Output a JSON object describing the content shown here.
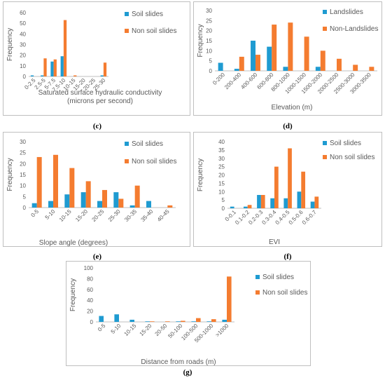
{
  "colors": {
    "series1": "#1f9bd1",
    "series2": "#f47c30",
    "axis": "#bfbfbf",
    "text": "#595959"
  },
  "panels": [
    {
      "caption": "(c)"
    },
    {
      "caption": "(d)"
    },
    {
      "caption": "(e)"
    },
    {
      "caption": "(f)"
    },
    {
      "caption": "(g)"
    }
  ],
  "chart_data": [
    {
      "type": "bar",
      "title": "",
      "xlabel": "Saturated surface hydraulic conductivity (microns per second)",
      "xlabel_lines": [
        "Saturated surface hydraulic conductivity",
        "(microns per second)"
      ],
      "ylabel": "Frequency",
      "ylim": [
        0,
        60
      ],
      "yticks": [
        0,
        10,
        20,
        30,
        40,
        50,
        60
      ],
      "grid": false,
      "legend": "top-right",
      "categories": [
        "0-2.5",
        "2.5-5",
        "5-7.5",
        "7.5-10",
        "10-15",
        "15-20",
        "20-25",
        "25-30"
      ],
      "series": [
        {
          "name": "Soil slides",
          "values": [
            1,
            1,
            14,
            19,
            0,
            0,
            0,
            1
          ]
        },
        {
          "name": "Non soil slides",
          "values": [
            0,
            17,
            16,
            53,
            1,
            0,
            0,
            13
          ]
        }
      ]
    },
    {
      "type": "bar",
      "title": "",
      "xlabel": "Elevation (m)",
      "ylabel": "Frequency",
      "ylim": [
        0,
        30
      ],
      "yticks": [
        0,
        5,
        10,
        15,
        20,
        25,
        30
      ],
      "grid": false,
      "legend": "top-right",
      "categories": [
        "0-200",
        "200-400",
        "400-600",
        "600-800",
        "800-1000",
        "1000-1500",
        "1500-2000",
        "2000-2500",
        "2500-3000",
        "3000-3500"
      ],
      "series": [
        {
          "name": "Landslides",
          "values": [
            4,
            1,
            15,
            12,
            2,
            0,
            2,
            0,
            0,
            0
          ]
        },
        {
          "name": "Non-Landslides",
          "values": [
            0,
            7,
            8,
            23,
            24,
            17,
            10,
            6,
            3,
            2
          ]
        }
      ]
    },
    {
      "type": "bar",
      "title": "",
      "xlabel": "Slope angle (degrees)",
      "ylabel": "Frequency",
      "ylim": [
        0,
        30
      ],
      "yticks": [
        0,
        5,
        10,
        15,
        20,
        25,
        30
      ],
      "grid": false,
      "legend": "top-right",
      "categories": [
        "0-5",
        "5-10",
        "10-15",
        "15-20",
        "20-25",
        "25-30",
        "30-35",
        "35-40",
        "40-45"
      ],
      "series": [
        {
          "name": "Soil slides",
          "values": [
            2,
            3,
            6,
            7,
            3,
            7,
            1,
            3,
            0
          ]
        },
        {
          "name": "Non soil slides",
          "values": [
            23,
            24,
            18,
            12,
            8,
            4,
            10,
            0,
            1
          ]
        }
      ]
    },
    {
      "type": "bar",
      "title": "",
      "xlabel": "EVI",
      "ylabel": "Frequency",
      "ylim": [
        0,
        40
      ],
      "yticks": [
        0,
        5,
        10,
        15,
        20,
        25,
        30,
        35,
        40
      ],
      "grid": false,
      "legend": "top-right",
      "categories": [
        "0-0.1",
        "0.1-0.2",
        "0.2-0.3",
        "0.3-0.4",
        "0.4-0.5",
        "0.5-0.6",
        "0.6-0.7"
      ],
      "series": [
        {
          "name": "Soil slides",
          "values": [
            1,
            1,
            8,
            6,
            6,
            10,
            4
          ]
        },
        {
          "name": "Non soil slides",
          "values": [
            0,
            2,
            8,
            25,
            36,
            22,
            7
          ]
        }
      ]
    },
    {
      "type": "bar",
      "title": "",
      "xlabel": "Distance from roads (m)",
      "ylabel": "Frequency",
      "ylim": [
        0,
        100
      ],
      "yticks": [
        0,
        20,
        40,
        60,
        80,
        100
      ],
      "grid": false,
      "legend": "top-right",
      "categories": [
        "0-5",
        "5-10",
        "10-15",
        "15-20",
        "20-50",
        "50-100",
        "100-500",
        "500-1000",
        ">1000"
      ],
      "series": [
        {
          "name": "Soil slides",
          "values": [
            11,
            14,
            4,
            1,
            0,
            1,
            1,
            1,
            4
          ]
        },
        {
          "name": "Non soil slides",
          "values": [
            0,
            0,
            0,
            1,
            1,
            2,
            7,
            5,
            84
          ]
        }
      ]
    }
  ]
}
